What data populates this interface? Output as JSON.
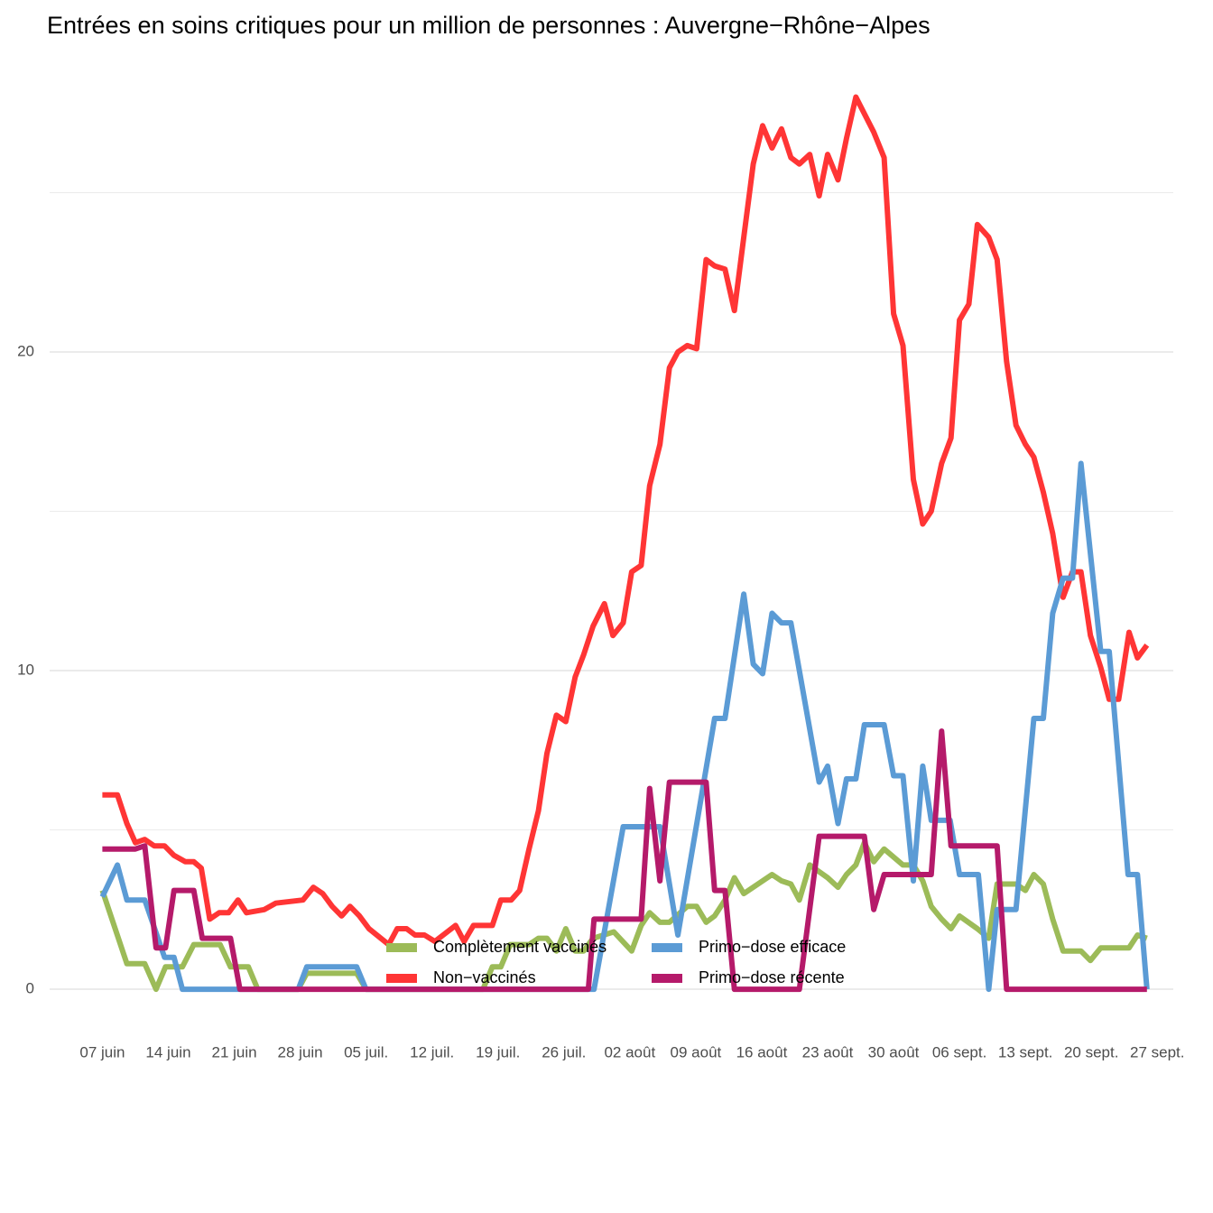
{
  "chart_data": {
    "type": "line",
    "title": "Entrées en soins critiques pour un million de personnes : Auvergne−Rhône−Alpes",
    "xlim": [
      -5.6,
      113.7
    ],
    "xticks": [
      {
        "value": 0,
        "label": "07 juin"
      },
      {
        "value": 7,
        "label": "14 juin"
      },
      {
        "value": 14,
        "label": "21 juin"
      },
      {
        "value": 21,
        "label": "28 juin"
      },
      {
        "value": 28,
        "label": "05 juil."
      },
      {
        "value": 35,
        "label": "12 juil."
      },
      {
        "value": 42,
        "label": "19 juil."
      },
      {
        "value": 49,
        "label": "26 juil."
      },
      {
        "value": 56,
        "label": "02 août"
      },
      {
        "value": 63,
        "label": "09 août"
      },
      {
        "value": 70,
        "label": "16 août"
      },
      {
        "value": 77,
        "label": "23 août"
      },
      {
        "value": 84,
        "label": "30 août"
      },
      {
        "value": 91,
        "label": "06 sept."
      },
      {
        "value": 98,
        "label": "13 sept."
      },
      {
        "value": 105,
        "label": "20 sept."
      },
      {
        "value": 112,
        "label": "27 sept."
      }
    ],
    "ylim": [
      -0.82,
      28.78
    ],
    "yticks": [
      0,
      10,
      20
    ],
    "y_minor_gridlines": [
      5,
      15,
      25
    ],
    "grid": true,
    "legend": "bottom",
    "series": [
      {
        "name": "Complètement vaccinés",
        "color": "#9cbb58",
        "x": [
          0,
          2.6,
          4.5,
          5.7,
          6.7,
          8.5,
          9.7,
          12.5,
          13.6,
          15.5,
          16.5,
          20.8,
          21.7,
          27,
          28,
          40.4,
          41.4,
          42.3,
          43.3,
          45.3,
          46.3,
          47.2,
          48.2,
          49.2,
          50.2,
          51.1,
          52.1,
          54.3,
          56.2,
          57.2,
          58.1,
          59.2,
          60.2,
          62.1,
          63.1,
          64.1,
          65,
          66.1,
          67.1,
          68.1,
          71.1,
          72.1,
          73.1,
          74,
          75.1,
          77,
          78.1,
          79,
          80,
          80.9,
          81.9,
          83,
          85,
          86.1,
          87.1,
          88,
          89.1,
          90.1,
          91,
          92.9,
          94.1,
          95,
          97,
          98,
          98.9,
          99.9,
          100.9,
          102,
          103.9,
          104.9,
          106,
          109,
          109.9,
          110.9
        ],
        "values": [
          3.1,
          0.8,
          0.8,
          0,
          0.7,
          0.7,
          1.4,
          1.4,
          0.7,
          0.7,
          0,
          0,
          0.5,
          0.5,
          0,
          0,
          0.7,
          0.7,
          1.4,
          1.4,
          1.6,
          1.6,
          1.2,
          1.9,
          1.2,
          1.2,
          1.6,
          1.8,
          1.2,
          2.0,
          2.4,
          2.1,
          2.1,
          2.6,
          2.6,
          2.1,
          2.3,
          2.8,
          3.5,
          3.0,
          3.6,
          3.4,
          3.3,
          2.8,
          3.9,
          3.5,
          3.2,
          3.6,
          3.9,
          4.6,
          4.0,
          4.4,
          3.9,
          3.9,
          3.4,
          2.6,
          2.2,
          1.9,
          2.3,
          1.9,
          1.6,
          3.3,
          3.3,
          3.1,
          3.6,
          3.3,
          2.2,
          1.2,
          1.2,
          0.9,
          1.3,
          1.3,
          1.7,
          1.6
        ]
      },
      {
        "name": "Non−vaccinés",
        "color": "#ff3535",
        "x": [
          0,
          1.6,
          2.6,
          3.5,
          4.5,
          5.5,
          6.6,
          7.6,
          8.8,
          9.7,
          10.5,
          11.4,
          12.4,
          13.4,
          14.4,
          15.3,
          17.2,
          18.4,
          21.3,
          22.4,
          23.4,
          24.4,
          25.4,
          26.3,
          27.3,
          28.3,
          30.4,
          31.3,
          32.3,
          33.2,
          34.2,
          35.3,
          37.5,
          38.4,
          39.4,
          41.4,
          42.3,
          43.4,
          44.3,
          45.3,
          46.3,
          47.2,
          48.2,
          49.2,
          50.2,
          51.1,
          52.1,
          53.3,
          54.2,
          55.3,
          56.2,
          57.2,
          58.1,
          59.2,
          60.2,
          61.1,
          62.1,
          63.1,
          64.1,
          65,
          66.1,
          67.1,
          68.1,
          69.1,
          70.1,
          71.1,
          72.1,
          73.1,
          74,
          75.1,
          76.1,
          77,
          78.1,
          79,
          80,
          81.9,
          83,
          84,
          85,
          86.1,
          87.1,
          88,
          89.1,
          90.1,
          91,
          92,
          92.9,
          94.1,
          95,
          96,
          97,
          98,
          98.9,
          99.9,
          100.9,
          102,
          103,
          103.9,
          104.9,
          106,
          106.9,
          107.9,
          109,
          109.9,
          110.9
        ],
        "values": [
          6.1,
          6.1,
          5.2,
          4.6,
          4.7,
          4.5,
          4.5,
          4.2,
          4.0,
          4.0,
          3.8,
          2.2,
          2.4,
          2.4,
          2.8,
          2.4,
          2.5,
          2.7,
          2.8,
          3.2,
          3.0,
          2.6,
          2.3,
          2.6,
          2.3,
          1.9,
          1.4,
          1.9,
          1.9,
          1.7,
          1.7,
          1.5,
          2.0,
          1.5,
          2.0,
          2.0,
          2.8,
          2.8,
          3.1,
          4.4,
          5.6,
          7.4,
          8.6,
          8.4,
          9.8,
          10.5,
          11.4,
          12.1,
          11.1,
          11.5,
          13.1,
          13.3,
          15.8,
          17.1,
          19.5,
          20.0,
          20.2,
          20.1,
          22.9,
          22.7,
          22.6,
          21.3,
          23.6,
          25.9,
          27.1,
          26.4,
          27.0,
          26.1,
          25.9,
          26.2,
          24.9,
          26.2,
          25.4,
          26.7,
          28.0,
          26.9,
          26.1,
          21.2,
          20.2,
          16.0,
          14.6,
          15.0,
          16.5,
          17.3,
          21.0,
          21.5,
          24.0,
          23.6,
          22.9,
          19.7,
          17.7,
          17.1,
          16.7,
          15.6,
          14.3,
          12.3,
          13.1,
          13.1,
          11.1,
          10.1,
          9.1,
          9.1,
          11.2,
          10.4,
          10.8
        ]
      },
      {
        "name": "Primo−dose efficace",
        "color": "#5b9bd5",
        "x": [
          0,
          1.6,
          2.6,
          4.5,
          6.6,
          7.6,
          8.5,
          20.8,
          21.7,
          27,
          28,
          52.2,
          55.3,
          59.2,
          61.1,
          65,
          66.1,
          68.1,
          69.1,
          70.1,
          71.1,
          72.1,
          73.1,
          76.1,
          77,
          78.1,
          79,
          80,
          80.9,
          83,
          84,
          85,
          86.1,
          87.1,
          88,
          90,
          91,
          93,
          94.1,
          95,
          97,
          98.9,
          99.9,
          100.9,
          102,
          103,
          103.9,
          106,
          106.9,
          108.9,
          109.9,
          110.9
        ],
        "values": [
          2.9,
          3.9,
          2.8,
          2.8,
          1.0,
          1.0,
          0,
          0,
          0.7,
          0.7,
          0,
          0,
          5.1,
          5.1,
          1.7,
          8.5,
          8.5,
          12.4,
          10.2,
          9.9,
          11.8,
          11.5,
          11.5,
          6.5,
          7.0,
          5.2,
          6.6,
          6.6,
          8.3,
          8.3,
          6.7,
          6.7,
          3.4,
          7.0,
          5.3,
          5.3,
          3.6,
          3.6,
          0,
          2.5,
          2.5,
          8.5,
          8.5,
          11.8,
          12.9,
          12.9,
          16.5,
          10.6,
          10.6,
          3.6,
          3.6,
          0
        ]
      },
      {
        "name": "Primo−dose récente",
        "color": "#b51a6a",
        "x": [
          0,
          3.5,
          4.5,
          5.7,
          6.7,
          7.6,
          9.7,
          10.6,
          13.6,
          14.6,
          51.6,
          52.2,
          57.2,
          58.1,
          59.2,
          60.2,
          64.1,
          65,
          66.1,
          67.1,
          74,
          76.1,
          80.9,
          81.9,
          83,
          88,
          89.1,
          90.1,
          95,
          96,
          110.9
        ],
        "values": [
          4.4,
          4.4,
          4.5,
          1.3,
          1.3,
          3.1,
          3.1,
          1.6,
          1.6,
          0,
          0,
          2.2,
          2.2,
          6.3,
          3.4,
          6.5,
          6.5,
          3.1,
          3.1,
          0,
          0,
          4.8,
          4.8,
          2.5,
          3.6,
          3.6,
          8.1,
          4.5,
          4.5,
          0,
          0
        ]
      }
    ]
  }
}
